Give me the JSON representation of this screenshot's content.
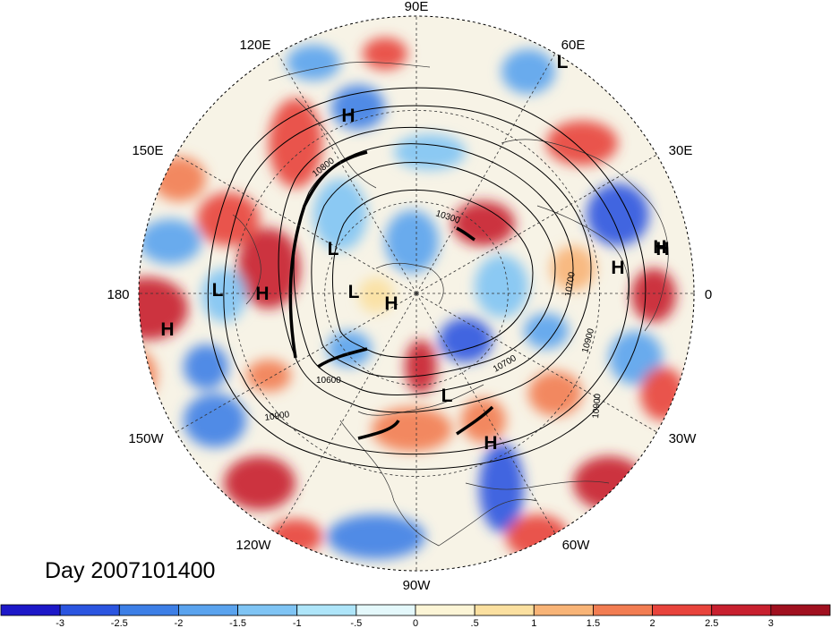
{
  "title": "Day 2007101400",
  "longitude_labels": {
    "top": "90E",
    "top_left": "120E",
    "top_right": "60E",
    "upper_left": "150E",
    "upper_right": "30E",
    "left": "180",
    "right": "0",
    "lower_left": "150W",
    "lower_right": "30W",
    "bottom_left": "120W",
    "bottom_right": "60W",
    "bottom": "90W"
  },
  "pressure_centers": [
    {
      "type": "L",
      "label": "L"
    },
    {
      "type": "H",
      "label": "H"
    },
    {
      "type": "H",
      "label": "H"
    },
    {
      "type": "L",
      "label": "L"
    },
    {
      "type": "H",
      "label": "H"
    },
    {
      "type": "H",
      "label": "H"
    },
    {
      "type": "L",
      "label": "L"
    },
    {
      "type": "L",
      "label": "L"
    },
    {
      "type": "H",
      "label": "H"
    },
    {
      "type": "H",
      "label": "H"
    },
    {
      "type": "H",
      "label": "H"
    },
    {
      "type": "L",
      "label": "L"
    },
    {
      "type": "H",
      "label": "H"
    }
  ],
  "contour_labels": [
    "10800",
    "10300",
    "10600",
    "10900",
    "10700",
    "10700",
    "10900",
    "10900"
  ],
  "colorbar": {
    "ticks": [
      "-3",
      "-2.5",
      "-2",
      "-1.5",
      "-1",
      "-.5",
      "0",
      ".5",
      "1",
      "1.5",
      "2",
      "2.5",
      "3"
    ],
    "colors": [
      "#1d18c8",
      "#2b55e0",
      "#3d7fe6",
      "#5aa3ee",
      "#7fc4f4",
      "#aee5f9",
      "#e4f8fb",
      "#fcf5d6",
      "#fbe0a0",
      "#f8b477",
      "#f27d52",
      "#e8443c",
      "#c8202f",
      "#a0101f"
    ]
  }
}
